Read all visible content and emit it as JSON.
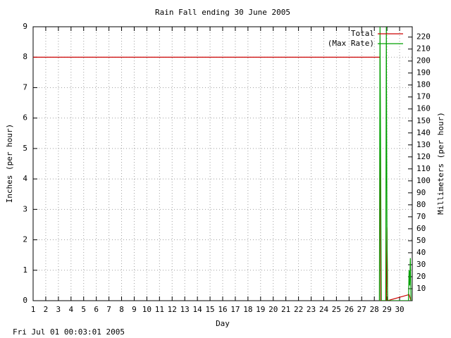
{
  "chart_data": {
    "type": "line",
    "title": "Rain Fall ending 30 June 2005",
    "x_label": "Day",
    "y_label": "Inches (per hour)",
    "y2_label": "Millimeters (per hour)",
    "footer": "Fri Jul 01 00:03:01 2005",
    "xlim": [
      1,
      31
    ],
    "xticks": [
      1,
      2,
      3,
      4,
      5,
      6,
      7,
      8,
      9,
      10,
      11,
      12,
      13,
      14,
      15,
      16,
      17,
      18,
      19,
      20,
      21,
      22,
      23,
      24,
      25,
      26,
      27,
      28,
      29,
      30
    ],
    "ylim": [
      0,
      9
    ],
    "yticks": [
      0,
      1,
      2,
      3,
      4,
      5,
      6,
      7,
      8,
      9
    ],
    "y2lim": [
      0,
      228.6
    ],
    "y2ticks": [
      10,
      20,
      30,
      40,
      50,
      60,
      70,
      80,
      90,
      100,
      110,
      120,
      130,
      140,
      150,
      160,
      170,
      180,
      190,
      200,
      210,
      220
    ],
    "grid": true,
    "legend": "top right",
    "series": [
      {
        "name": "Total",
        "color": "#cc0000",
        "x": [
          1,
          28.45,
          28.5,
          28.95,
          29.0,
          29.05,
          30.75,
          30.9
        ],
        "values": [
          8,
          8,
          0,
          0,
          2.4,
          0,
          0.2,
          0
        ]
      },
      {
        "name": "(Max Rate)",
        "color": "#00a000",
        "x": [
          28.4,
          28.45,
          28.5,
          28.55,
          28.9,
          28.95,
          29.0,
          29.05,
          30.7,
          30.75,
          30.8,
          30.85,
          30.9
        ],
        "values": [
          0,
          9,
          4.6,
          0,
          0,
          9,
          2.4,
          0,
          0,
          1,
          0.5,
          1.4,
          0
        ]
      }
    ]
  }
}
